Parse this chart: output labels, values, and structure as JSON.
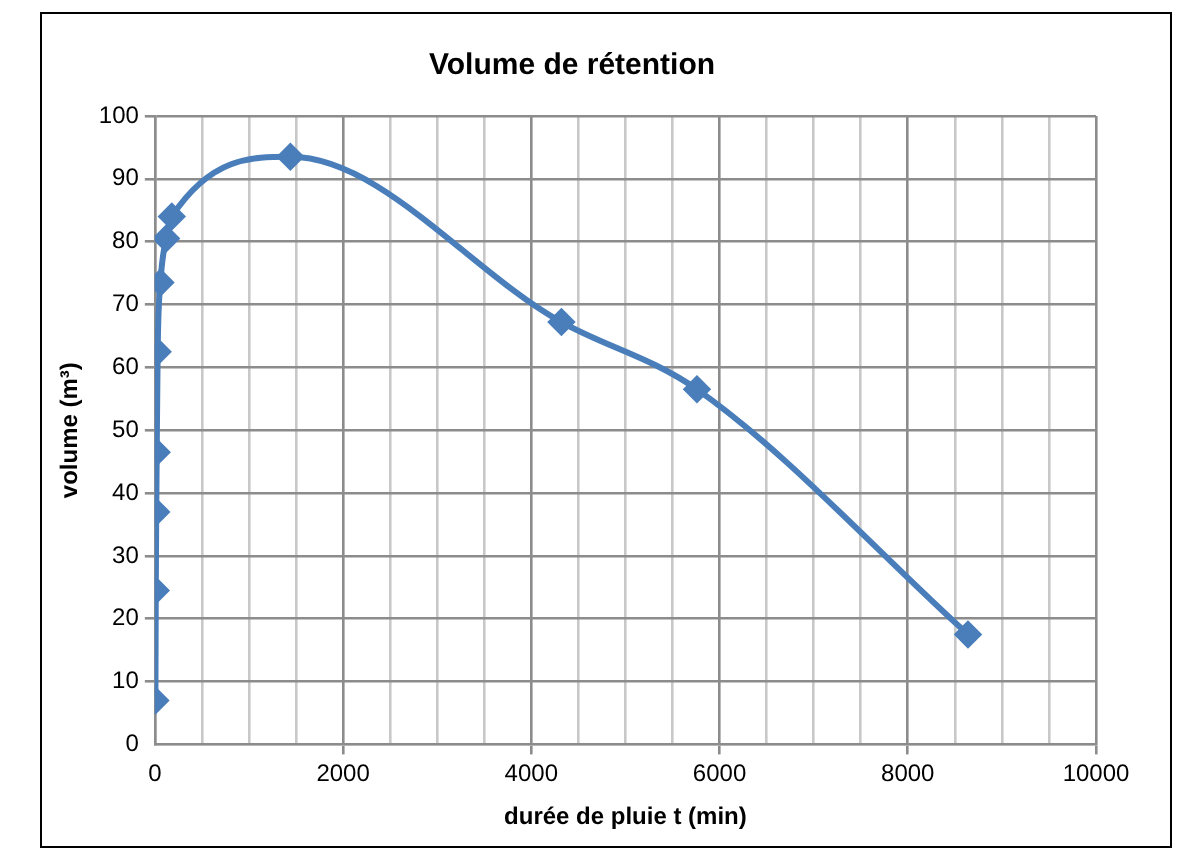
{
  "chart_data": {
    "type": "line",
    "title": "Volume de rétention",
    "xlabel": "durée de pluie t (min)",
    "ylabel": "volume (m³)",
    "x": [
      6,
      10,
      15,
      20,
      30,
      60,
      120,
      180,
      1440,
      4320,
      5760,
      8640
    ],
    "series": [
      {
        "color": "#4a7ebb",
        "values": [
          7,
          24.5,
          37,
          46.5,
          62.5,
          73.5,
          80.5,
          84,
          93.5,
          67.2,
          56.5,
          17.5
        ]
      }
    ],
    "xlim": [
      0,
      10000
    ],
    "xticks": [
      0,
      {
        "value": 500,
        "label": null
      },
      {
        "value": 1000,
        "label": null
      },
      {
        "value": 1500,
        "label": null
      },
      2000,
      {
        "value": 2500,
        "label": null
      },
      {
        "value": 3000,
        "label": null
      },
      {
        "value": 3500,
        "label": null
      },
      4000,
      {
        "value": 4500,
        "label": null
      },
      {
        "value": 5000,
        "label": null
      },
      {
        "value": 5500,
        "label": null
      },
      6000,
      {
        "value": 6500,
        "label": null
      },
      {
        "value": 7000,
        "label": null
      },
      {
        "value": 7500,
        "label": null
      },
      8000,
      {
        "value": 8500,
        "label": null
      },
      {
        "value": 9000,
        "label": null
      },
      {
        "value": 9500,
        "label": null
      },
      10000
    ],
    "ylim": [
      0,
      100
    ],
    "yticks": [
      0,
      10,
      20,
      30,
      40,
      50,
      60,
      70,
      80,
      90,
      100
    ],
    "grid": true,
    "legend": false,
    "marker": "diamond",
    "line_style": "solid"
  }
}
